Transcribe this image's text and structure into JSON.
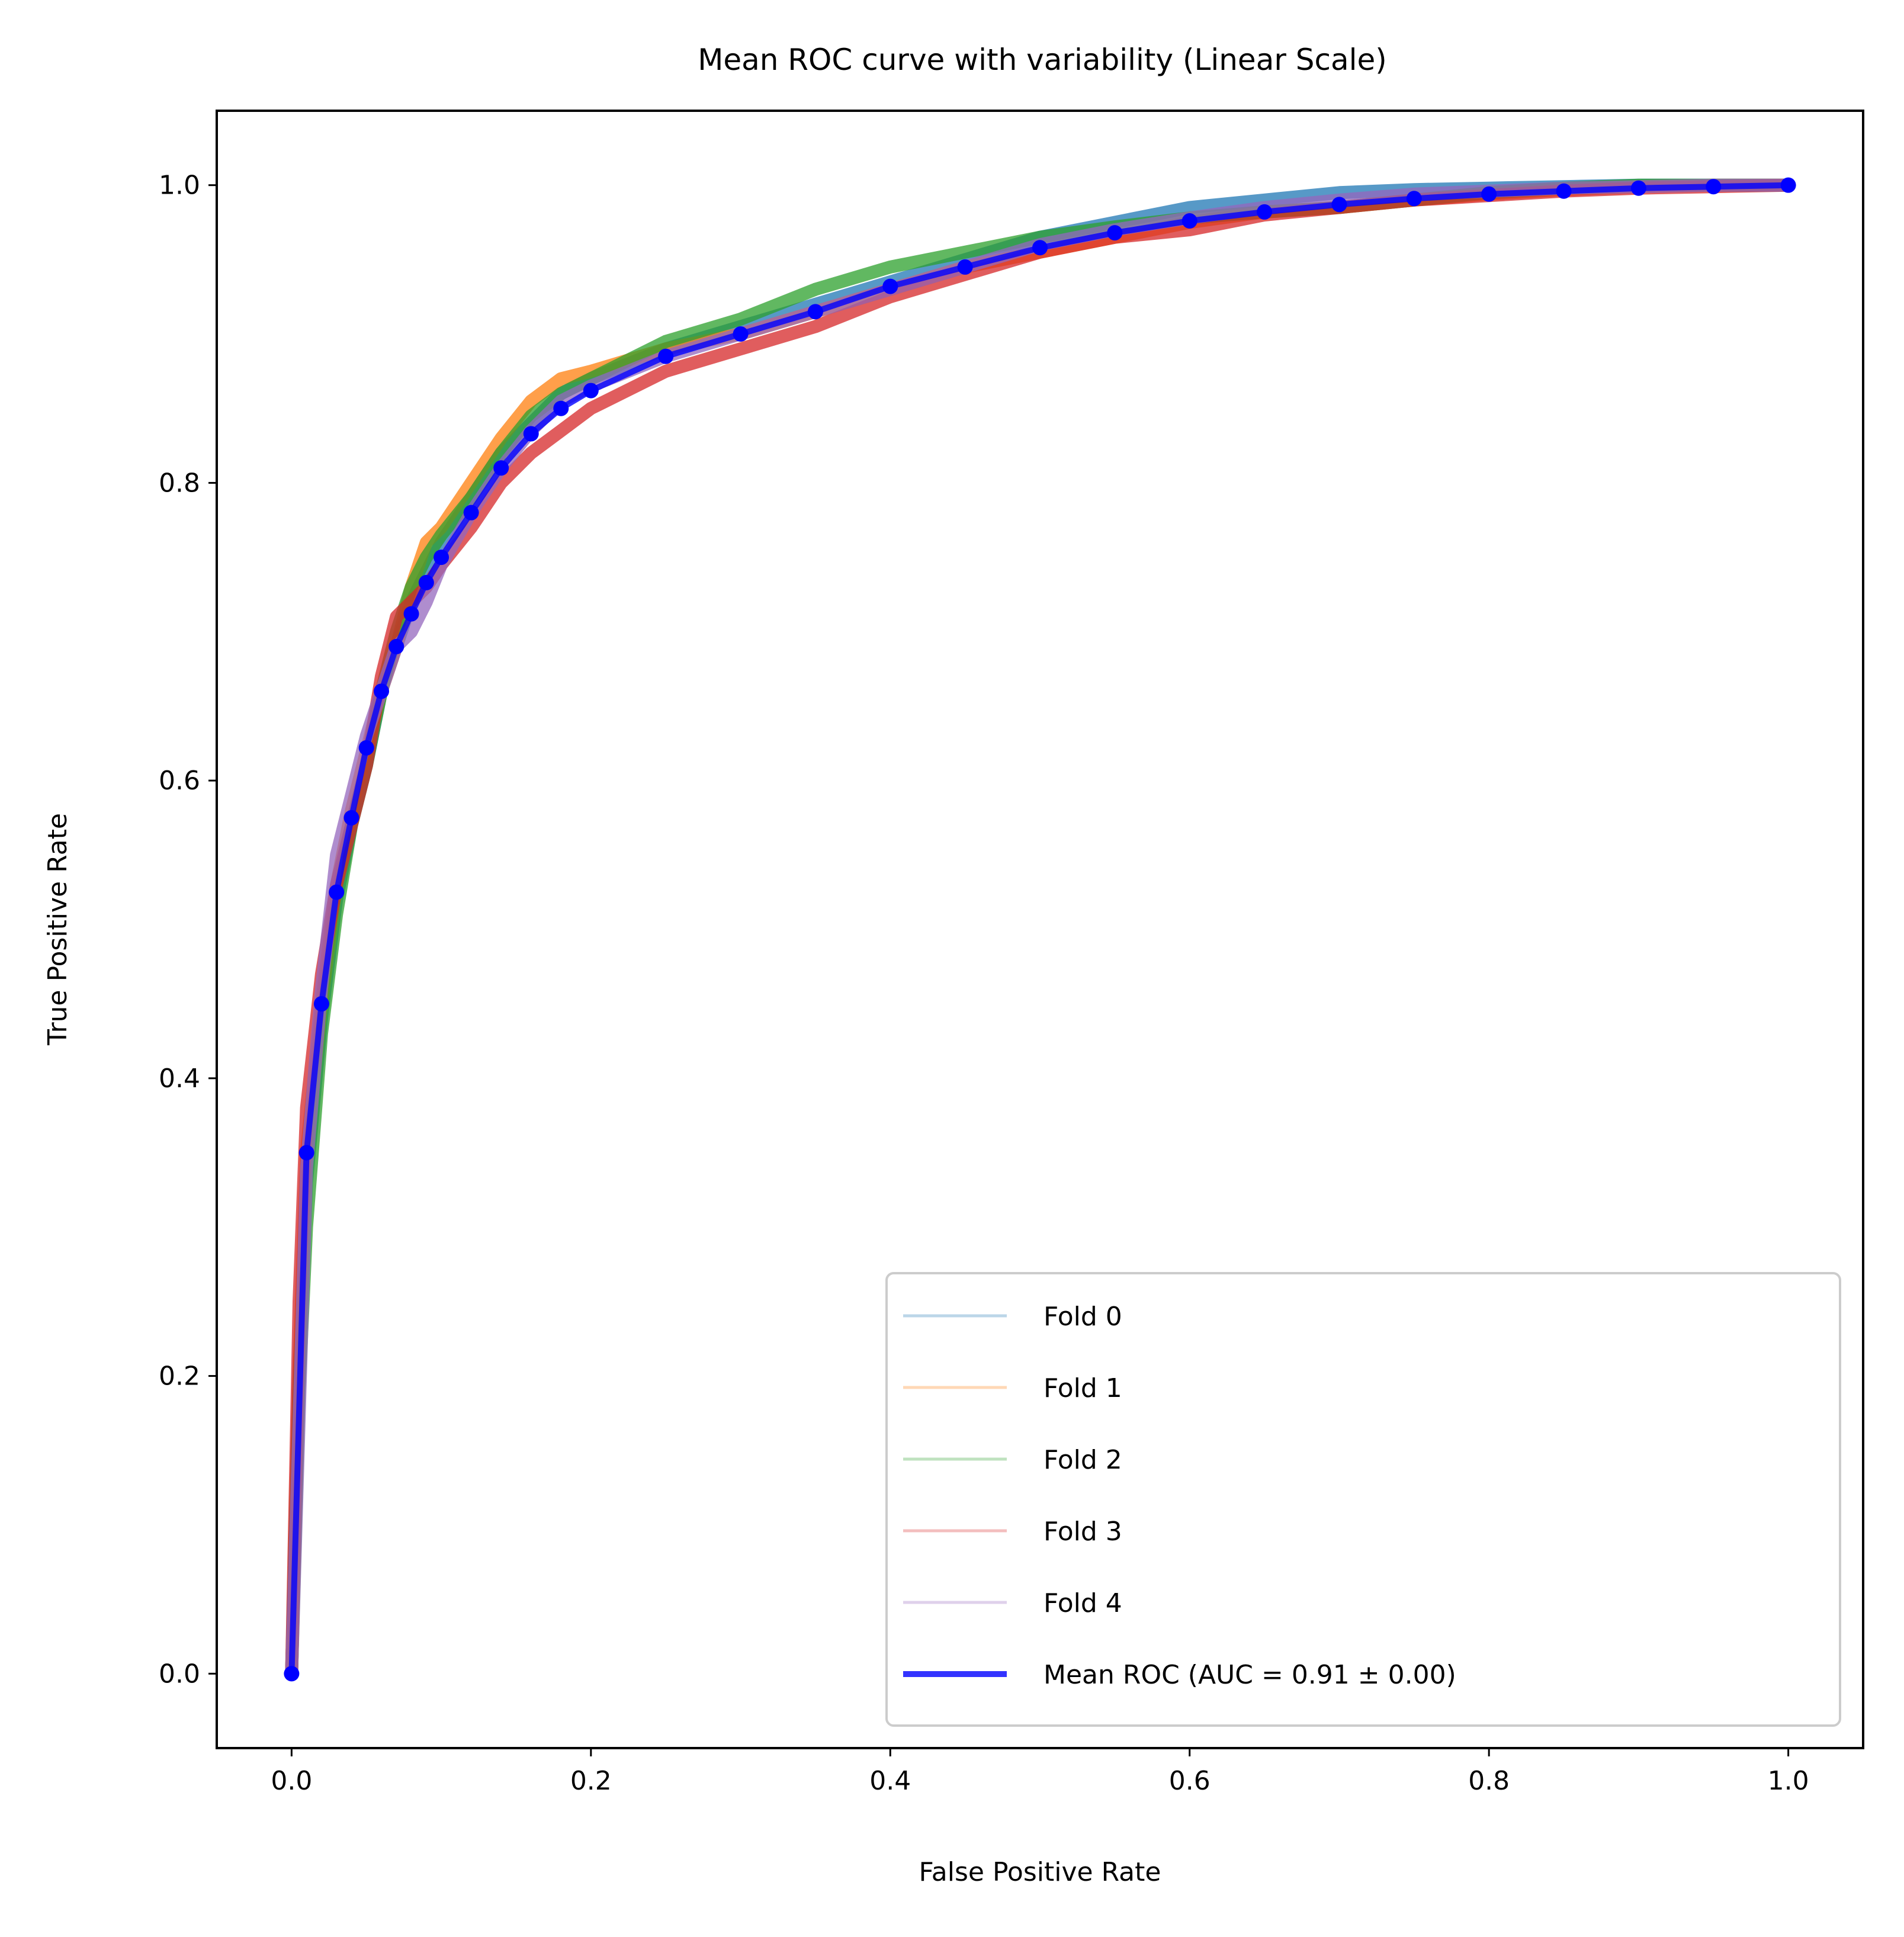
{
  "chart_data": {
    "type": "line",
    "title": "Mean ROC curve with variability (Linear Scale)",
    "xlabel": "False Positive Rate",
    "ylabel": "True Positive Rate",
    "xlim": [
      -0.05,
      1.05
    ],
    "ylim": [
      -0.05,
      1.05
    ],
    "x_ticks": [
      "0.0",
      "0.2",
      "0.4",
      "0.6",
      "0.8",
      "1.0"
    ],
    "y_ticks": [
      "0.0",
      "0.2",
      "0.4",
      "0.6",
      "0.8",
      "1.0"
    ],
    "grid": false,
    "legend_position": "lower-right",
    "series": [
      {
        "name": "Fold 0",
        "color": "#1f77b4",
        "x": [
          0.0,
          0.005,
          0.01,
          0.02,
          0.03,
          0.04,
          0.05,
          0.06,
          0.07,
          0.08,
          0.09,
          0.1,
          0.12,
          0.14,
          0.16,
          0.18,
          0.2,
          0.25,
          0.3,
          0.35,
          0.4,
          0.45,
          0.5,
          0.55,
          0.6,
          0.65,
          0.7,
          0.75,
          0.8,
          0.85,
          0.9,
          0.95,
          1.0
        ],
        "y": [
          0.0,
          0.2,
          0.33,
          0.44,
          0.52,
          0.57,
          0.61,
          0.66,
          0.69,
          0.72,
          0.74,
          0.76,
          0.79,
          0.82,
          0.84,
          0.86,
          0.87,
          0.89,
          0.905,
          0.92,
          0.935,
          0.95,
          0.965,
          0.975,
          0.985,
          0.99,
          0.995,
          0.997,
          0.998,
          0.999,
          1.0,
          1.0,
          1.0
        ]
      },
      {
        "name": "Fold 1",
        "color": "#ff7f0e",
        "x": [
          0.0,
          0.005,
          0.01,
          0.02,
          0.03,
          0.04,
          0.05,
          0.06,
          0.07,
          0.08,
          0.09,
          0.1,
          0.12,
          0.14,
          0.16,
          0.18,
          0.2,
          0.25,
          0.3,
          0.35,
          0.4,
          0.45,
          0.5,
          0.55,
          0.6,
          0.65,
          0.7,
          0.75,
          0.8,
          0.85,
          0.9,
          0.95,
          1.0
        ],
        "y": [
          0.0,
          0.2,
          0.35,
          0.45,
          0.53,
          0.58,
          0.62,
          0.66,
          0.69,
          0.73,
          0.76,
          0.77,
          0.8,
          0.83,
          0.855,
          0.87,
          0.875,
          0.89,
          0.9,
          0.915,
          0.93,
          0.945,
          0.955,
          0.965,
          0.975,
          0.982,
          0.985,
          0.99,
          0.994,
          0.997,
          0.999,
          1.0,
          1.0
        ]
      },
      {
        "name": "Fold 2",
        "color": "#2ca02c",
        "x": [
          0.0,
          0.005,
          0.01,
          0.02,
          0.03,
          0.04,
          0.05,
          0.06,
          0.07,
          0.08,
          0.09,
          0.1,
          0.12,
          0.14,
          0.16,
          0.18,
          0.2,
          0.25,
          0.3,
          0.35,
          0.4,
          0.45,
          0.5,
          0.55,
          0.6,
          0.65,
          0.7,
          0.75,
          0.8,
          0.85,
          0.9,
          0.95,
          1.0
        ],
        "y": [
          0.0,
          0.19,
          0.3,
          0.43,
          0.51,
          0.57,
          0.61,
          0.66,
          0.7,
          0.73,
          0.75,
          0.765,
          0.79,
          0.82,
          0.845,
          0.86,
          0.87,
          0.895,
          0.91,
          0.93,
          0.945,
          0.955,
          0.965,
          0.972,
          0.978,
          0.982,
          0.985,
          0.99,
          0.995,
          0.998,
          1.0,
          1.0,
          1.0
        ]
      },
      {
        "name": "Fold 3",
        "color": "#d62728",
        "x": [
          0.0,
          0.005,
          0.01,
          0.02,
          0.03,
          0.04,
          0.05,
          0.06,
          0.07,
          0.08,
          0.09,
          0.1,
          0.12,
          0.14,
          0.16,
          0.18,
          0.2,
          0.25,
          0.3,
          0.35,
          0.4,
          0.45,
          0.5,
          0.55,
          0.6,
          0.65,
          0.7,
          0.75,
          0.8,
          0.85,
          0.9,
          0.95,
          1.0
        ],
        "y": [
          0.0,
          0.25,
          0.38,
          0.47,
          0.53,
          0.57,
          0.61,
          0.67,
          0.71,
          0.72,
          0.73,
          0.745,
          0.77,
          0.8,
          0.82,
          0.835,
          0.85,
          0.875,
          0.89,
          0.905,
          0.925,
          0.94,
          0.955,
          0.965,
          0.97,
          0.98,
          0.985,
          0.99,
          0.993,
          0.996,
          0.998,
          0.999,
          1.0
        ]
      },
      {
        "name": "Fold 4",
        "color": "#9467bd",
        "x": [
          0.0,
          0.005,
          0.01,
          0.02,
          0.03,
          0.04,
          0.05,
          0.06,
          0.07,
          0.08,
          0.09,
          0.1,
          0.12,
          0.14,
          0.16,
          0.18,
          0.2,
          0.25,
          0.3,
          0.35,
          0.4,
          0.45,
          0.5,
          0.55,
          0.6,
          0.65,
          0.7,
          0.75,
          0.8,
          0.85,
          0.9,
          0.95,
          1.0
        ],
        "y": [
          0.0,
          0.17,
          0.34,
          0.46,
          0.55,
          0.59,
          0.63,
          0.66,
          0.69,
          0.7,
          0.72,
          0.745,
          0.78,
          0.81,
          0.835,
          0.855,
          0.865,
          0.885,
          0.9,
          0.915,
          0.93,
          0.945,
          0.96,
          0.97,
          0.978,
          0.985,
          0.99,
          0.994,
          0.996,
          0.998,
          0.999,
          1.0,
          1.0
        ]
      },
      {
        "name": "Mean ROC (AUC = 0.91 ± 0.00)",
        "color": "#0000ff",
        "x": [
          0.0,
          0.01,
          0.02,
          0.03,
          0.04,
          0.05,
          0.06,
          0.07,
          0.08,
          0.09,
          0.1,
          0.12,
          0.14,
          0.16,
          0.18,
          0.2,
          0.25,
          0.3,
          0.35,
          0.4,
          0.45,
          0.5,
          0.55,
          0.6,
          0.65,
          0.7,
          0.75,
          0.8,
          0.85,
          0.9,
          0.95,
          1.0
        ],
        "y": [
          0.0,
          0.35,
          0.45,
          0.525,
          0.575,
          0.622,
          0.66,
          0.69,
          0.712,
          0.733,
          0.75,
          0.78,
          0.81,
          0.833,
          0.85,
          0.862,
          0.885,
          0.9,
          0.915,
          0.932,
          0.945,
          0.958,
          0.968,
          0.976,
          0.982,
          0.987,
          0.991,
          0.994,
          0.996,
          0.998,
          0.999,
          1.0
        ]
      }
    ]
  }
}
